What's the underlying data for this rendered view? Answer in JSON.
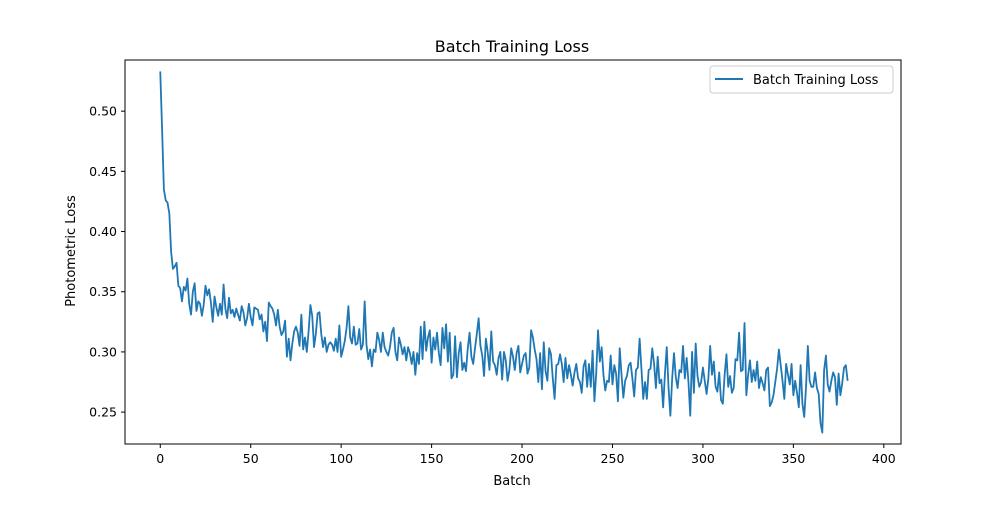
{
  "chart_data": {
    "type": "line",
    "title": "Batch Training Loss",
    "xlabel": "Batch",
    "ylabel": "Photometric Loss",
    "xlim": [
      -19.5,
      409.5
    ],
    "ylim": [
      0.2235,
      0.5425
    ],
    "xticks": [
      0,
      50,
      100,
      150,
      200,
      250,
      300,
      350,
      400
    ],
    "xtick_labels": [
      "0",
      "50",
      "100",
      "150",
      "200",
      "250",
      "300",
      "350",
      "400"
    ],
    "yticks": [
      0.25,
      0.3,
      0.35,
      0.4,
      0.45,
      0.5
    ],
    "ytick_labels": [
      "0.25",
      "0.30",
      "0.35",
      "0.40",
      "0.45",
      "0.50"
    ],
    "grid": false,
    "legend_position": "top-right",
    "series": [
      {
        "name": "Batch Training Loss",
        "color": "#1f77b4",
        "x_start": 0,
        "x_step": 1,
        "values": [
          0.533,
          0.485,
          0.435,
          0.426,
          0.424,
          0.415,
          0.383,
          0.369,
          0.371,
          0.374,
          0.355,
          0.353,
          0.342,
          0.354,
          0.351,
          0.361,
          0.34,
          0.331,
          0.35,
          0.357,
          0.334,
          0.342,
          0.34,
          0.33,
          0.339,
          0.355,
          0.347,
          0.352,
          0.341,
          0.325,
          0.346,
          0.337,
          0.33,
          0.34,
          0.331,
          0.356,
          0.336,
          0.328,
          0.345,
          0.332,
          0.335,
          0.329,
          0.336,
          0.331,
          0.326,
          0.338,
          0.333,
          0.322,
          0.328,
          0.34,
          0.329,
          0.322,
          0.337,
          0.336,
          0.335,
          0.327,
          0.331,
          0.317,
          0.325,
          0.309,
          0.341,
          0.338,
          0.336,
          0.331,
          0.322,
          0.335,
          0.321,
          0.314,
          0.317,
          0.326,
          0.296,
          0.311,
          0.293,
          0.307,
          0.317,
          0.321,
          0.316,
          0.305,
          0.331,
          0.302,
          0.312,
          0.3,
          0.317,
          0.339,
          0.33,
          0.304,
          0.315,
          0.332,
          0.333,
          0.315,
          0.304,
          0.312,
          0.3,
          0.306,
          0.308,
          0.306,
          0.301,
          0.311,
          0.3,
          0.322,
          0.296,
          0.302,
          0.309,
          0.32,
          0.338,
          0.312,
          0.307,
          0.321,
          0.306,
          0.307,
          0.319,
          0.302,
          0.306,
          0.342,
          0.306,
          0.294,
          0.302,
          0.288,
          0.302,
          0.3,
          0.316,
          0.31,
          0.3,
          0.316,
          0.304,
          0.3,
          0.297,
          0.304,
          0.316,
          0.32,
          0.3,
          0.293,
          0.312,
          0.306,
          0.298,
          0.304,
          0.293,
          0.304,
          0.299,
          0.29,
          0.3,
          0.281,
          0.299,
          0.29,
          0.321,
          0.294,
          0.325,
          0.301,
          0.312,
          0.318,
          0.291,
          0.312,
          0.302,
          0.316,
          0.299,
          0.289,
          0.32,
          0.303,
          0.323,
          0.292,
          0.316,
          0.278,
          0.281,
          0.313,
          0.279,
          0.299,
          0.308,
          0.285,
          0.291,
          0.284,
          0.303,
          0.316,
          0.296,
          0.29,
          0.303,
          0.315,
          0.328,
          0.305,
          0.297,
          0.28,
          0.311,
          0.3,
          0.285,
          0.317,
          0.292,
          0.289,
          0.281,
          0.295,
          0.3,
          0.277,
          0.3,
          0.293,
          0.276,
          0.285,
          0.303,
          0.296,
          0.285,
          0.299,
          0.305,
          0.283,
          0.29,
          0.297,
          0.299,
          0.282,
          0.287,
          0.318,
          0.312,
          0.302,
          0.294,
          0.275,
          0.299,
          0.269,
          0.308,
          0.284,
          0.276,
          0.303,
          0.298,
          0.278,
          0.261,
          0.289,
          0.29,
          0.298,
          0.29,
          0.275,
          0.295,
          0.278,
          0.289,
          0.281,
          0.272,
          0.283,
          0.29,
          0.278,
          0.275,
          0.266,
          0.288,
          0.293,
          0.271,
          0.29,
          0.271,
          0.301,
          0.259,
          0.282,
          0.318,
          0.292,
          0.304,
          0.281,
          0.268,
          0.276,
          0.275,
          0.297,
          0.273,
          0.289,
          0.282,
          0.259,
          0.303,
          0.281,
          0.262,
          0.276,
          0.28,
          0.289,
          0.291,
          0.278,
          0.263,
          0.285,
          0.287,
          0.311,
          0.286,
          0.261,
          0.275,
          0.261,
          0.285,
          0.286,
          0.303,
          0.29,
          0.27,
          0.296,
          0.274,
          0.277,
          0.254,
          0.282,
          0.304,
          0.27,
          0.247,
          0.278,
          0.299,
          0.279,
          0.27,
          0.285,
          0.283,
          0.305,
          0.278,
          0.295,
          0.275,
          0.247,
          0.3,
          0.266,
          0.307,
          0.28,
          0.271,
          0.275,
          0.287,
          0.276,
          0.265,
          0.278,
          0.305,
          0.281,
          0.292,
          0.271,
          0.267,
          0.283,
          0.26,
          0.257,
          0.281,
          0.298,
          0.271,
          0.28,
          0.266,
          0.27,
          0.294,
          0.293,
          0.316,
          0.284,
          0.285,
          0.324,
          0.264,
          0.281,
          0.293,
          0.275,
          0.285,
          0.276,
          0.292,
          0.27,
          0.279,
          0.274,
          0.268,
          0.285,
          0.287,
          0.255,
          0.258,
          0.264,
          0.275,
          0.286,
          0.302,
          0.289,
          0.276,
          0.261,
          0.29,
          0.281,
          0.273,
          0.29,
          0.264,
          0.276,
          0.266,
          0.254,
          0.289,
          0.257,
          0.246,
          0.271,
          0.305,
          0.276,
          0.271,
          0.271,
          0.283,
          0.27,
          0.265,
          0.241,
          0.233,
          0.285,
          0.297,
          0.273,
          0.267,
          0.276,
          0.283,
          0.279,
          0.256,
          0.282,
          0.264,
          0.274,
          0.287,
          0.289,
          0.276
        ]
      }
    ]
  }
}
